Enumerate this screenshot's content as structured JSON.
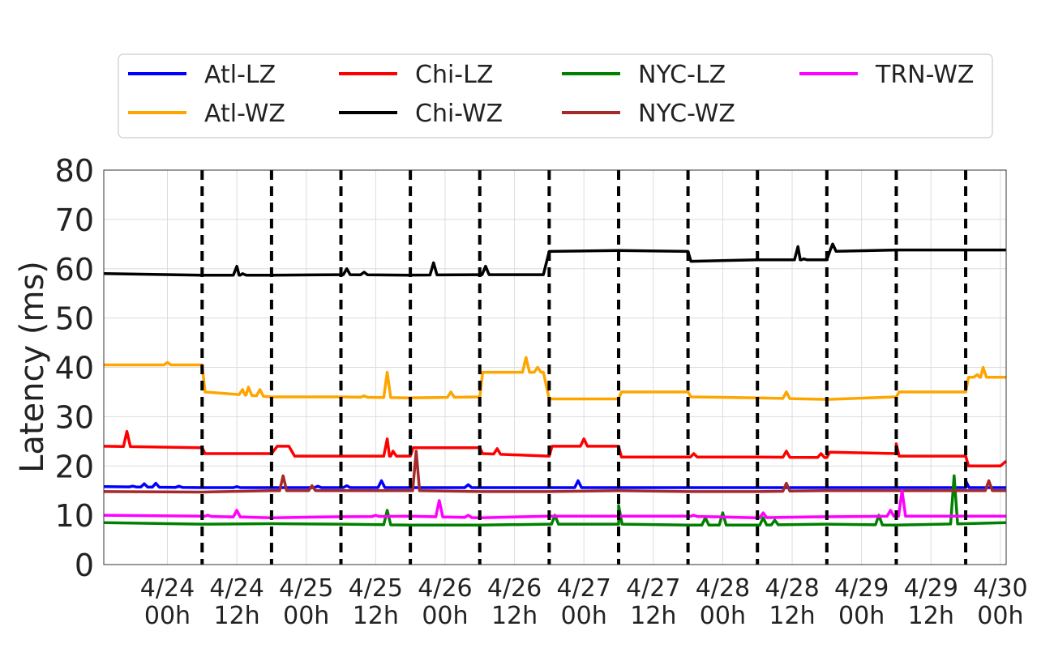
{
  "chart_data": {
    "type": "line",
    "title": "",
    "xlabel": "",
    "ylabel": "Latency (ms)",
    "ylim": [
      0,
      80
    ],
    "yticks": [
      "0",
      "10",
      "20",
      "30",
      "40",
      "50",
      "60",
      "70",
      "80"
    ],
    "xticks": [
      {
        "line1": "4/24",
        "line2": "00h"
      },
      {
        "line1": "4/24",
        "line2": "12h"
      },
      {
        "line1": "4/25",
        "line2": "00h"
      },
      {
        "line1": "4/25",
        "line2": "12h"
      },
      {
        "line1": "4/26",
        "line2": "00h"
      },
      {
        "line1": "4/26",
        "line2": "12h"
      },
      {
        "line1": "4/27",
        "line2": "00h"
      },
      {
        "line1": "4/27",
        "line2": "12h"
      },
      {
        "line1": "4/28",
        "line2": "00h"
      },
      {
        "line1": "4/28",
        "line2": "12h"
      },
      {
        "line1": "4/29",
        "line2": "00h"
      },
      {
        "line1": "4/29",
        "line2": "12h"
      },
      {
        "line1": "4/30",
        "line2": "00h"
      }
    ],
    "grid": true,
    "legend_position": "top",
    "xlim_hours": [
      -11,
      145
    ],
    "vlines_hours": [
      6,
      18,
      30,
      42,
      54,
      66,
      78,
      90,
      102,
      114,
      126,
      138
    ],
    "series": [
      {
        "name": "Atl-LZ",
        "color": "#0000ff",
        "points": [
          [
            -11,
            15.8
          ],
          [
            6,
            15.6
          ],
          [
            18,
            15.6
          ],
          [
            30,
            15.6
          ],
          [
            42,
            15.6
          ],
          [
            54,
            15.6
          ],
          [
            66,
            15.6
          ],
          [
            78,
            15.6
          ],
          [
            90,
            15.6
          ],
          [
            102,
            15.6
          ],
          [
            114,
            15.6
          ],
          [
            126,
            15.6
          ],
          [
            138,
            15.6
          ],
          [
            145,
            15.6
          ]
        ],
        "spikes": [
          [
            -6,
            15.9
          ],
          [
            -4,
            16.4
          ],
          [
            -2,
            16.5
          ],
          [
            2,
            15.9
          ],
          [
            12,
            15.8
          ],
          [
            26,
            15.9
          ],
          [
            31,
            16.0
          ],
          [
            37,
            17.0
          ],
          [
            52,
            16.2
          ],
          [
            71,
            17.0
          ],
          [
            138,
            17.0
          ]
        ]
      },
      {
        "name": "Atl-WZ",
        "color": "#ffa500",
        "points": [
          [
            -11,
            40.5
          ],
          [
            6,
            40.5
          ],
          [
            6.5,
            35.0
          ],
          [
            18,
            34.0
          ],
          [
            30,
            34.0
          ],
          [
            42,
            33.8
          ],
          [
            54,
            34.0
          ],
          [
            54.5,
            39.0
          ],
          [
            65,
            39.0
          ],
          [
            66,
            33.6
          ],
          [
            78,
            33.6
          ],
          [
            78.5,
            35.0
          ],
          [
            90,
            35.0
          ],
          [
            90.5,
            34.0
          ],
          [
            102,
            33.8
          ],
          [
            114,
            33.5
          ],
          [
            126,
            34.0
          ],
          [
            126.5,
            35.0
          ],
          [
            138,
            35.0
          ],
          [
            138.5,
            38.0
          ],
          [
            145,
            38.0
          ]
        ],
        "spikes": [
          [
            0,
            41.0
          ],
          [
            13,
            35.5
          ],
          [
            14,
            36.0
          ],
          [
            16,
            35.5
          ],
          [
            34,
            34.2
          ],
          [
            38,
            39.0
          ],
          [
            49,
            35.0
          ],
          [
            62,
            42.0
          ],
          [
            64,
            40.0
          ],
          [
            107,
            35.0
          ],
          [
            140,
            38.5
          ],
          [
            141,
            40.0
          ]
        ]
      },
      {
        "name": "Chi-LZ",
        "color": "#ff0000",
        "points": [
          [
            -11,
            24.0
          ],
          [
            6,
            23.7
          ],
          [
            6.5,
            22.5
          ],
          [
            18,
            22.5
          ],
          [
            19,
            24.0
          ],
          [
            21,
            24.0
          ],
          [
            22,
            22.0
          ],
          [
            30,
            22.0
          ],
          [
            40,
            22.0
          ],
          [
            42,
            22.0
          ],
          [
            42.5,
            23.7
          ],
          [
            54,
            23.7
          ],
          [
            54.5,
            22.5
          ],
          [
            66,
            22.0
          ],
          [
            66.5,
            24.0
          ],
          [
            78,
            24.0
          ],
          [
            78.5,
            21.8
          ],
          [
            90,
            21.8
          ],
          [
            102,
            21.8
          ],
          [
            114,
            21.7
          ],
          [
            114.5,
            22.8
          ],
          [
            126,
            22.5
          ],
          [
            126.5,
            22.0
          ],
          [
            138,
            22.0
          ],
          [
            138.5,
            20.0
          ],
          [
            144,
            20.0
          ],
          [
            145,
            21.0
          ]
        ],
        "spikes": [
          [
            -7,
            27.0
          ],
          [
            38,
            25.5
          ],
          [
            39,
            23.0
          ],
          [
            57,
            23.5
          ],
          [
            72,
            25.5
          ],
          [
            91,
            22.5
          ],
          [
            107,
            23.0
          ],
          [
            113,
            22.5
          ],
          [
            126,
            24.5
          ]
        ]
      },
      {
        "name": "Chi-WZ",
        "color": "#000000",
        "points": [
          [
            -11,
            59.0
          ],
          [
            6,
            58.7
          ],
          [
            18,
            58.7
          ],
          [
            30,
            58.8
          ],
          [
            42,
            58.7
          ],
          [
            54,
            58.8
          ],
          [
            65,
            58.8
          ],
          [
            66,
            63.5
          ],
          [
            78,
            63.7
          ],
          [
            90,
            63.5
          ],
          [
            90.5,
            61.5
          ],
          [
            102,
            61.8
          ],
          [
            114,
            61.8
          ],
          [
            114.5,
            63.5
          ],
          [
            126,
            63.8
          ],
          [
            138,
            63.8
          ],
          [
            145,
            63.8
          ]
        ],
        "spikes": [
          [
            12,
            60.5
          ],
          [
            13,
            59.0
          ],
          [
            31,
            60.0
          ],
          [
            34,
            59.3
          ],
          [
            46,
            61.2
          ],
          [
            55,
            60.5
          ],
          [
            109,
            64.5
          ],
          [
            110,
            62.0
          ],
          [
            115,
            65.0
          ]
        ]
      },
      {
        "name": "NYC-LZ",
        "color": "#008000",
        "points": [
          [
            -11,
            8.5
          ],
          [
            6,
            8.2
          ],
          [
            18,
            8.3
          ],
          [
            30,
            8.2
          ],
          [
            42,
            8.0
          ],
          [
            54,
            8.0
          ],
          [
            66,
            8.2
          ],
          [
            78,
            8.2
          ],
          [
            90,
            8.0
          ],
          [
            102,
            8.0
          ],
          [
            114,
            8.2
          ],
          [
            126,
            8.0
          ],
          [
            138,
            8.3
          ],
          [
            145,
            8.5
          ]
        ],
        "spikes": [
          [
            38,
            11.0
          ],
          [
            67,
            10.0
          ],
          [
            78,
            12.0
          ],
          [
            93,
            9.5
          ],
          [
            96,
            10.5
          ],
          [
            103,
            9.5
          ],
          [
            105,
            9.0
          ],
          [
            123,
            10.0
          ],
          [
            136,
            18.0
          ]
        ]
      },
      {
        "name": "NYC-WZ",
        "color": "#a52a2a",
        "points": [
          [
            -11,
            14.8
          ],
          [
            6,
            14.7
          ],
          [
            18,
            15.0
          ],
          [
            30,
            15.0
          ],
          [
            42,
            15.0
          ],
          [
            54,
            14.8
          ],
          [
            66,
            14.8
          ],
          [
            78,
            15.0
          ],
          [
            90,
            14.8
          ],
          [
            102,
            14.8
          ],
          [
            114,
            15.0
          ],
          [
            126,
            15.0
          ],
          [
            138,
            15.0
          ],
          [
            145,
            15.0
          ]
        ],
        "spikes": [
          [
            20,
            18.0
          ],
          [
            25,
            16.0
          ],
          [
            43,
            23.0
          ],
          [
            107,
            16.5
          ],
          [
            142,
            17.0
          ]
        ]
      },
      {
        "name": "TRN-WZ",
        "color": "#ff00ff",
        "points": [
          [
            -11,
            10.0
          ],
          [
            6,
            9.8
          ],
          [
            18,
            9.5
          ],
          [
            30,
            9.7
          ],
          [
            42,
            9.8
          ],
          [
            54,
            9.5
          ],
          [
            66,
            9.8
          ],
          [
            78,
            9.8
          ],
          [
            90,
            9.8
          ],
          [
            102,
            9.5
          ],
          [
            114,
            9.7
          ],
          [
            126,
            9.8
          ],
          [
            138,
            9.8
          ],
          [
            145,
            9.8
          ]
        ],
        "spikes": [
          [
            7,
            10.0
          ],
          [
            12,
            11.0
          ],
          [
            36,
            10.0
          ],
          [
            47,
            13.0
          ],
          [
            52,
            10.0
          ],
          [
            91,
            10.0
          ],
          [
            103,
            10.5
          ],
          [
            125,
            11.0
          ],
          [
            127,
            15.0
          ]
        ]
      }
    ]
  }
}
